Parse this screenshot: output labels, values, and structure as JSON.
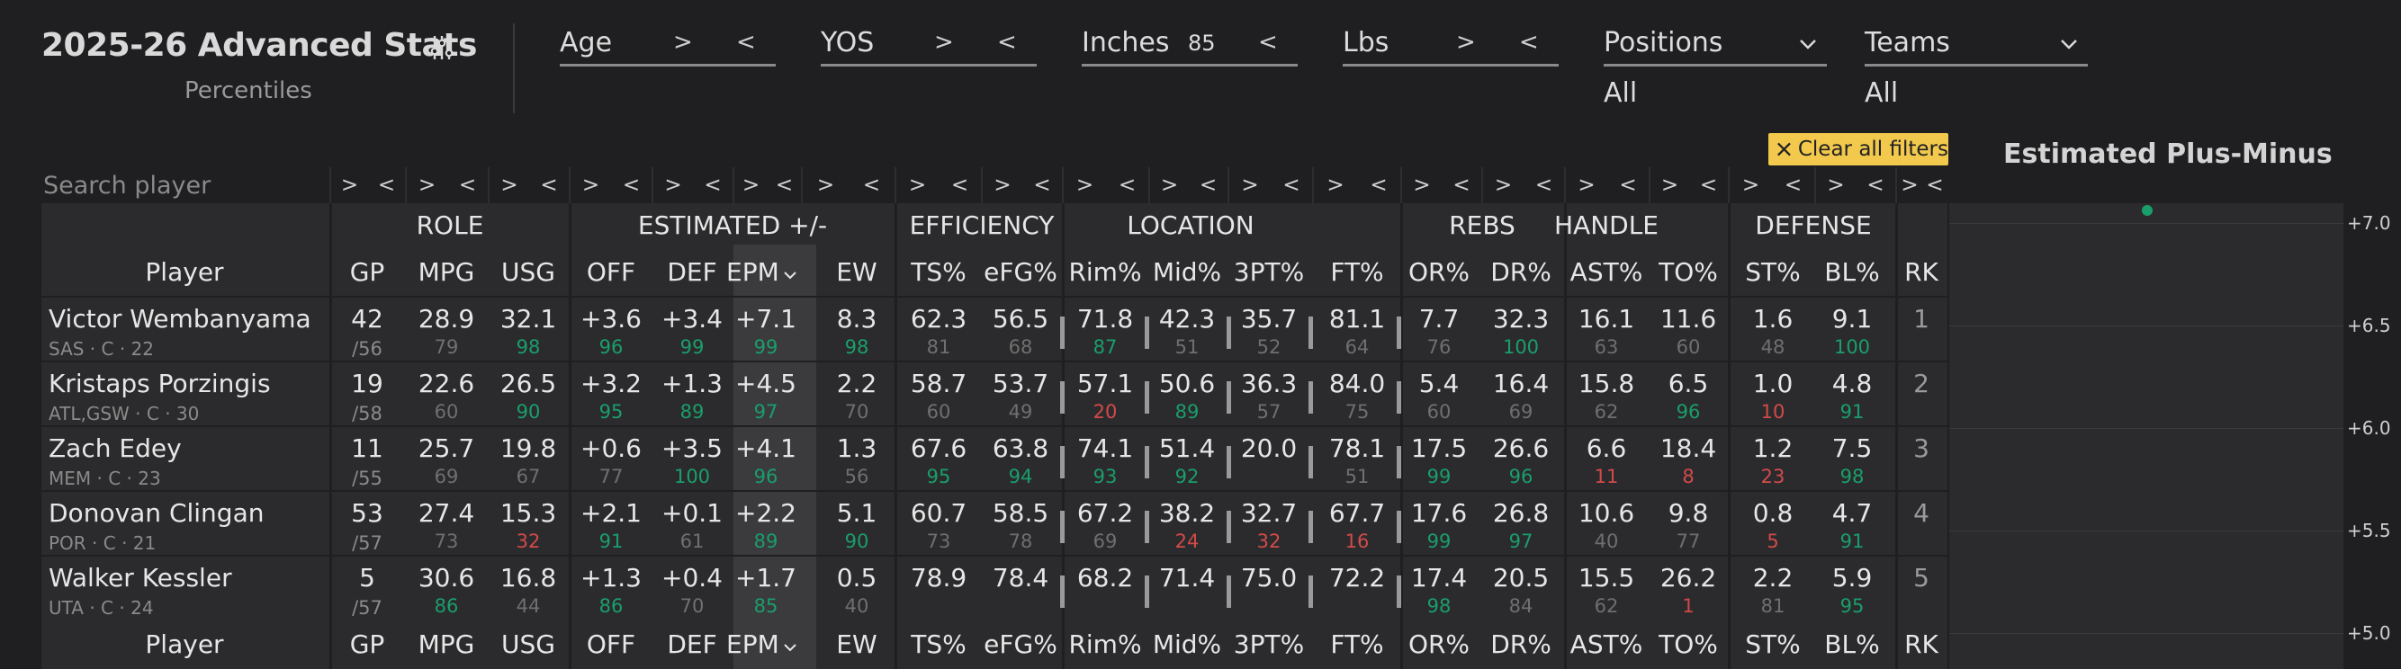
{
  "header": {
    "title": "2025-26 Advanced Stats",
    "subtitle": "Percentiles"
  },
  "filters": [
    {
      "label": "Age",
      "gt": ">",
      "lt": "<",
      "value": ""
    },
    {
      "label": "YOS",
      "gt": ">",
      "lt": "<",
      "value": ""
    },
    {
      "label": "Inches",
      "gt": "",
      "lt": "<",
      "value": "85"
    },
    {
      "label": "Lbs",
      "gt": ">",
      "lt": "<",
      "value": ""
    }
  ],
  "dropdowns": [
    {
      "label": "Positions",
      "selected": "All"
    },
    {
      "label": "Teams",
      "selected": "All"
    }
  ],
  "clear_filters": "Clear all filters",
  "chart_title": "Estimated Plus-Minus",
  "search": {
    "placeholder": "Search player"
  },
  "groups": {
    "role": "ROLE",
    "estimated": "ESTIMATED +/-",
    "efficiency": "EFFICIENCY",
    "location": "LOCATION",
    "rebs": "REBS",
    "handle": "HANDLE",
    "defense": "DEFENSE"
  },
  "columns": [
    "Player",
    "GP",
    "MPG",
    "USG",
    "OFF",
    "DEF",
    "EPM",
    "EW",
    "TS%",
    "eFG%",
    "Rim%",
    "Mid%",
    "3PT%",
    "FT%",
    "OR%",
    "DR%",
    "AST%",
    "TO%",
    "ST%",
    "BL%",
    "RK"
  ],
  "sorted_column": "EPM",
  "rows": [
    {
      "name": "Victor Wembanyama",
      "meta": "SAS · C · 22",
      "gp": "42",
      "gp_of": "/56",
      "cells": [
        [
          "28.9",
          "79"
        ],
        [
          "32.1",
          "98"
        ],
        [
          "+3.6",
          "96"
        ],
        [
          "+3.4",
          "99"
        ],
        [
          "+7.1",
          "99"
        ],
        [
          "8.3",
          "98"
        ],
        [
          "62.3",
          "81"
        ],
        [
          "56.5",
          "68"
        ],
        [
          "71.8",
          "87"
        ],
        [
          "42.3",
          "51"
        ],
        [
          "35.7",
          "52"
        ],
        [
          "81.1",
          "64"
        ],
        [
          "7.7",
          "76"
        ],
        [
          "32.3",
          "100"
        ],
        [
          "16.1",
          "63"
        ],
        [
          "11.6",
          "60"
        ],
        [
          "1.6",
          "48"
        ],
        [
          "9.1",
          "100"
        ]
      ],
      "rk": "1"
    },
    {
      "name": "Kristaps Porzingis",
      "meta": "ATL,GSW · C · 30",
      "gp": "19",
      "gp_of": "/58",
      "cells": [
        [
          "22.6",
          "60"
        ],
        [
          "26.5",
          "90"
        ],
        [
          "+3.2",
          "95"
        ],
        [
          "+1.3",
          "89"
        ],
        [
          "+4.5",
          "97"
        ],
        [
          "2.2",
          "70"
        ],
        [
          "58.7",
          "60"
        ],
        [
          "53.7",
          "49"
        ],
        [
          "57.1",
          "20"
        ],
        [
          "50.6",
          "89"
        ],
        [
          "36.3",
          "57"
        ],
        [
          "84.0",
          "75"
        ],
        [
          "5.4",
          "60"
        ],
        [
          "16.4",
          "69"
        ],
        [
          "15.8",
          "62"
        ],
        [
          "6.5",
          "96"
        ],
        [
          "1.0",
          "10"
        ],
        [
          "4.8",
          "91"
        ]
      ],
      "rk": "2"
    },
    {
      "name": "Zach Edey",
      "meta": "MEM · C · 23",
      "gp": "11",
      "gp_of": "/55",
      "cells": [
        [
          "25.7",
          "69"
        ],
        [
          "19.8",
          "67"
        ],
        [
          "+0.6",
          "77"
        ],
        [
          "+3.5",
          "100"
        ],
        [
          "+4.1",
          "96"
        ],
        [
          "1.3",
          "56"
        ],
        [
          "67.6",
          "95"
        ],
        [
          "63.8",
          "94"
        ],
        [
          "74.1",
          "93"
        ],
        [
          "51.4",
          "92"
        ],
        [
          "20.0",
          ""
        ],
        [
          "78.1",
          "51"
        ],
        [
          "17.5",
          "99"
        ],
        [
          "26.6",
          "96"
        ],
        [
          "6.6",
          "11"
        ],
        [
          "18.4",
          "8"
        ],
        [
          "1.2",
          "23"
        ],
        [
          "7.5",
          "98"
        ]
      ],
      "rk": "3"
    },
    {
      "name": "Donovan Clingan",
      "meta": "POR · C · 21",
      "gp": "53",
      "gp_of": "/57",
      "cells": [
        [
          "27.4",
          "73"
        ],
        [
          "15.3",
          "32"
        ],
        [
          "+2.1",
          "91"
        ],
        [
          "+0.1",
          "61"
        ],
        [
          "+2.2",
          "89"
        ],
        [
          "5.1",
          "90"
        ],
        [
          "60.7",
          "73"
        ],
        [
          "58.5",
          "78"
        ],
        [
          "67.2",
          "69"
        ],
        [
          "38.2",
          "24"
        ],
        [
          "32.7",
          "32"
        ],
        [
          "67.7",
          "16"
        ],
        [
          "17.6",
          "99"
        ],
        [
          "26.8",
          "97"
        ],
        [
          "10.6",
          "40"
        ],
        [
          "9.8",
          "77"
        ],
        [
          "0.8",
          "5"
        ],
        [
          "4.7",
          "91"
        ]
      ],
      "rk": "4"
    },
    {
      "name": "Walker Kessler",
      "meta": "UTA · C · 24",
      "gp": "5",
      "gp_of": "/57",
      "cells": [
        [
          "30.6",
          "86"
        ],
        [
          "16.8",
          "44"
        ],
        [
          "+1.3",
          "86"
        ],
        [
          "+0.4",
          "70"
        ],
        [
          "+1.7",
          "85"
        ],
        [
          "0.5",
          "40"
        ],
        [
          "78.9",
          ""
        ],
        [
          "78.4",
          ""
        ],
        [
          "68.2",
          ""
        ],
        [
          "71.4",
          ""
        ],
        [
          "75.0",
          ""
        ],
        [
          "72.2",
          ""
        ],
        [
          "17.4",
          "98"
        ],
        [
          "20.5",
          "84"
        ],
        [
          "15.5",
          "62"
        ],
        [
          "26.2",
          "1"
        ],
        [
          "2.2",
          "81"
        ],
        [
          "5.9",
          "95"
        ]
      ],
      "rk": "5"
    }
  ],
  "chart": {
    "y_ticks": [
      "+7.0",
      "+6.5",
      "+6.0",
      "+5.5",
      "+5.0"
    ],
    "colors": {
      "high": "#1a9e6b",
      "low": "#d24a4a",
      "mid": "#6f6f6f",
      "accent": "#f2c94c"
    }
  }
}
